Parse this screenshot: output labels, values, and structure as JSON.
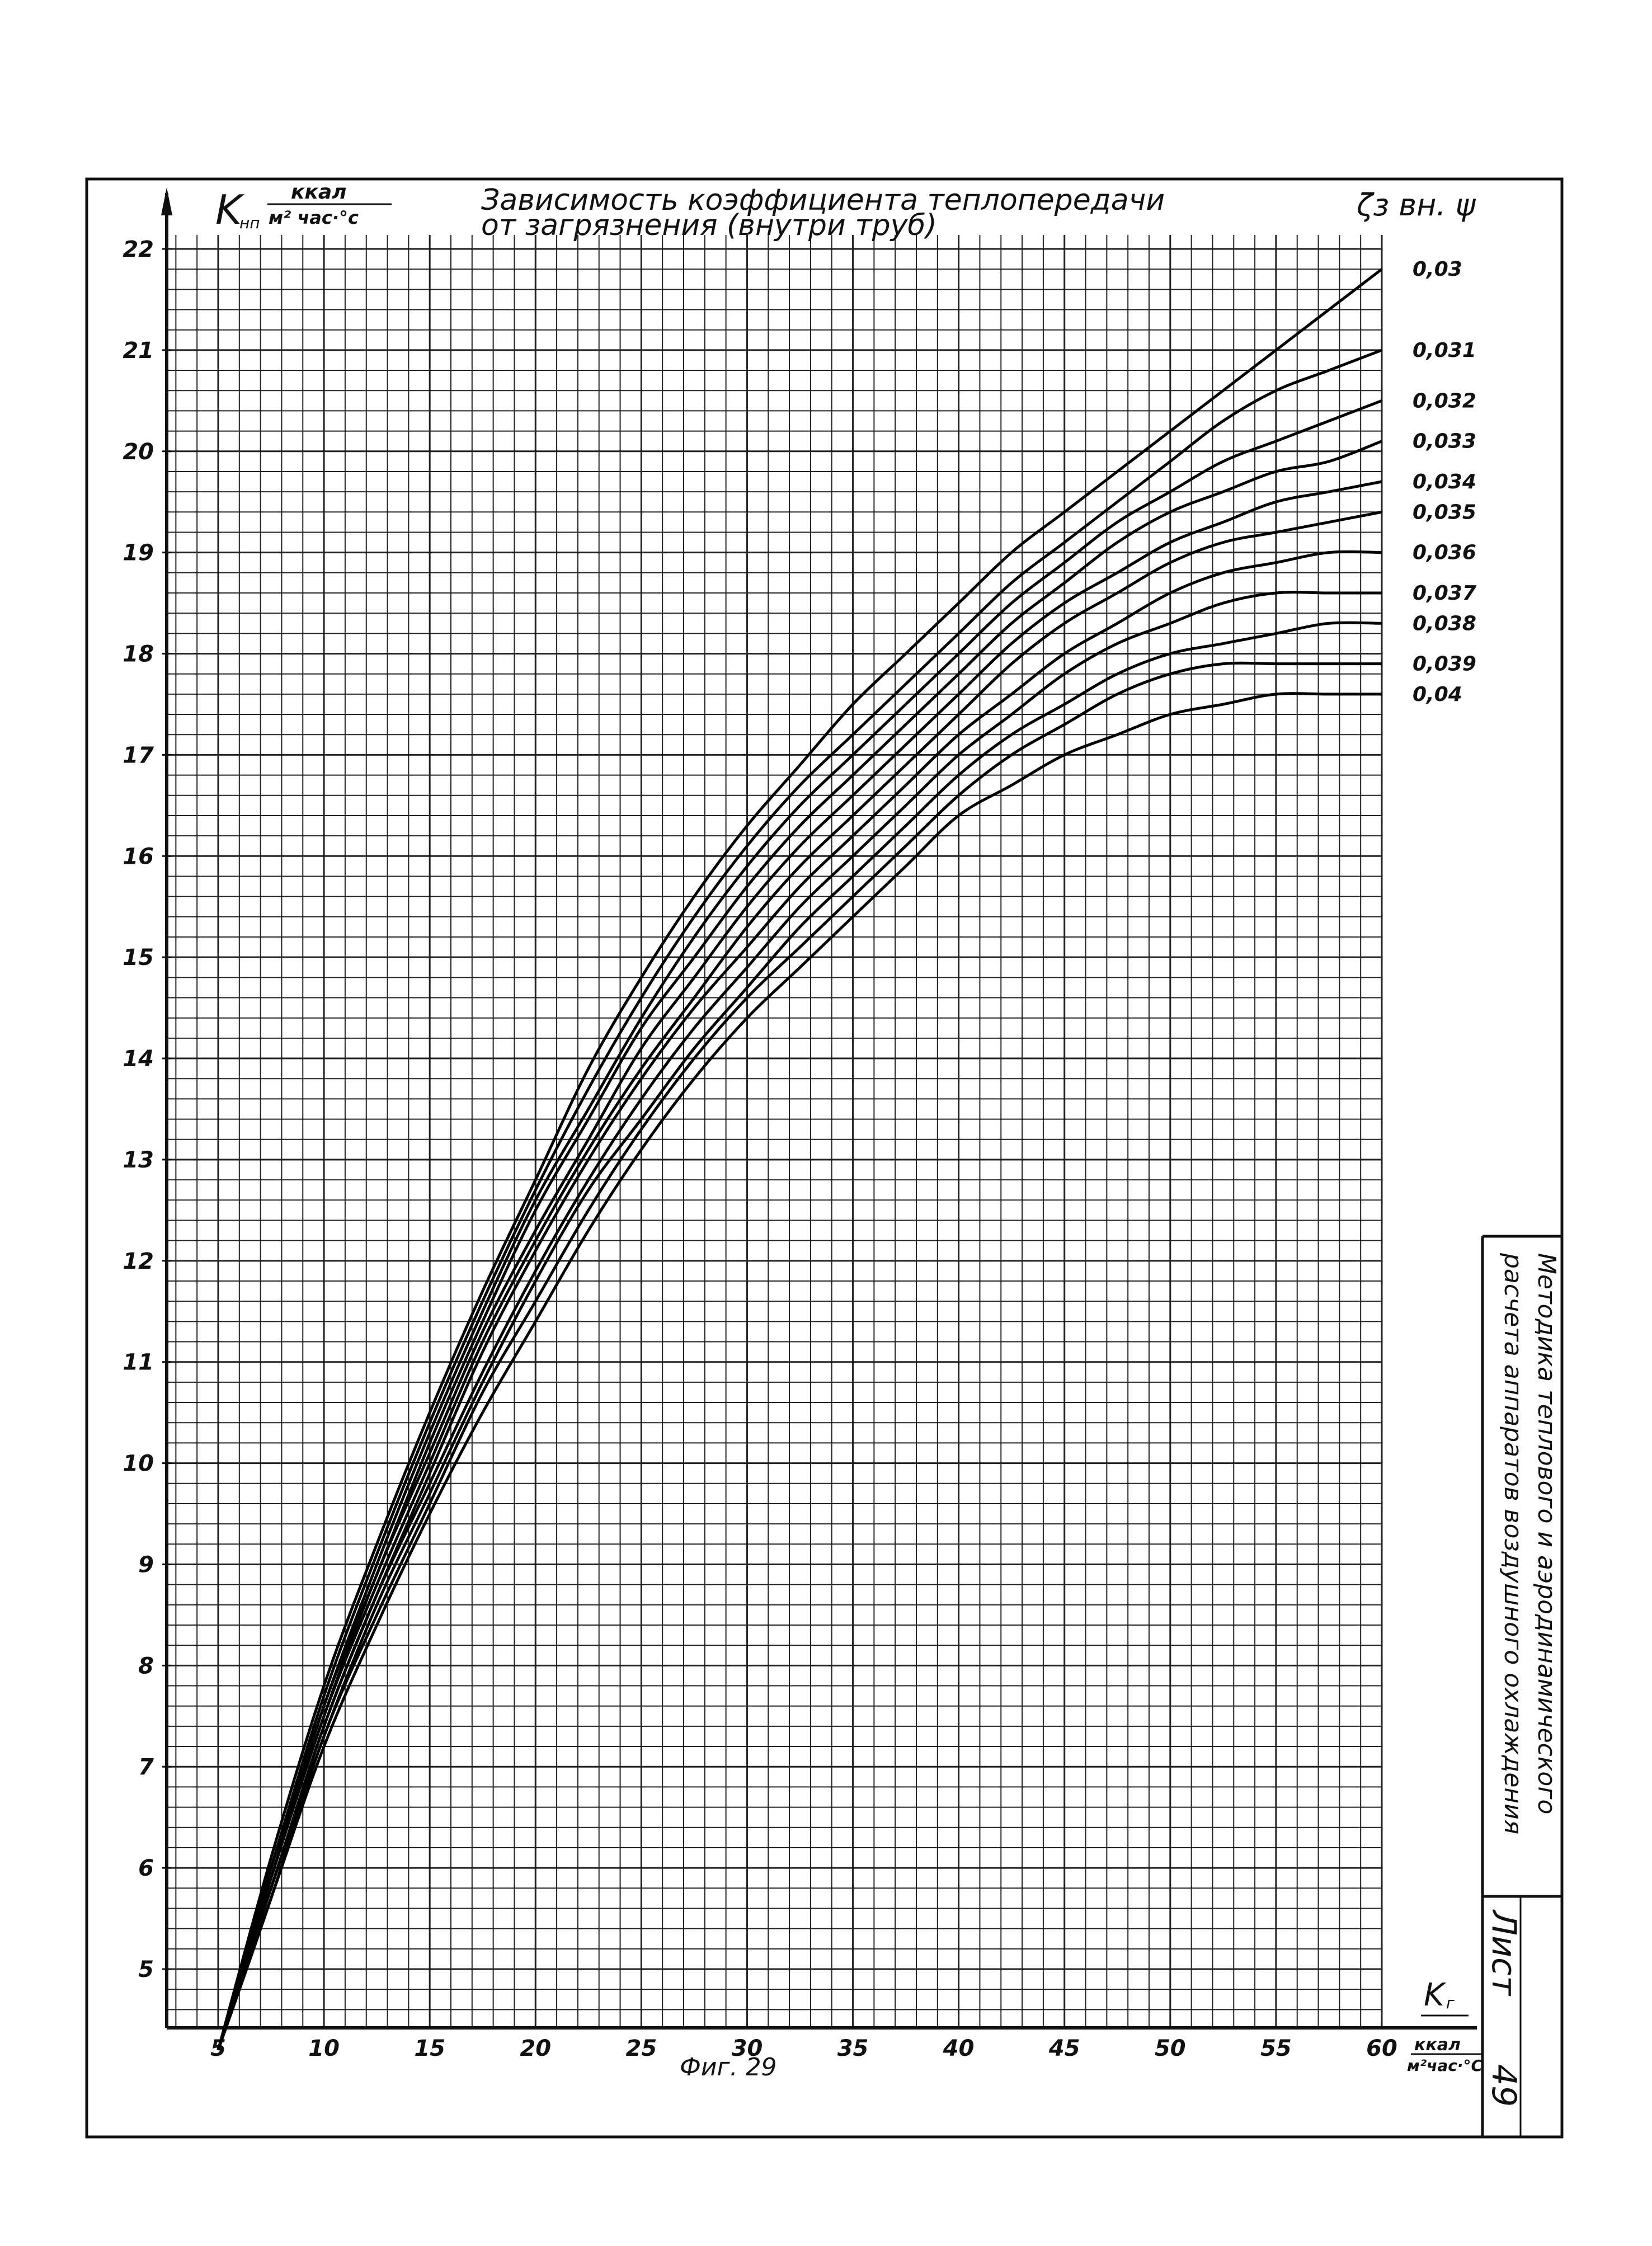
{
  "chart_data": {
    "type": "line",
    "title": "Зависимость коэффициента теплопередачи",
    "subtitle": "от загрязнения (внутри труб)",
    "ylabel": "K",
    "ylabel_sub": "нп",
    "ylabel_unit_num": "ккал",
    "ylabel_unit_den": "м² час·°с",
    "xlabel": "K",
    "xlabel_sub": "г",
    "xlabel_unit_num": "ккал",
    "xlabel_unit_den": "м²час·°С",
    "series_header": "ζз вн. ψ",
    "caption": "Фиг. 29",
    "xlim": [
      5,
      60
    ],
    "ylim": [
      4.2,
      22
    ],
    "x_ticks": [
      5,
      10,
      15,
      20,
      25,
      30,
      35,
      40,
      45,
      50,
      55,
      60
    ],
    "y_ticks": [
      5,
      6,
      7,
      8,
      9,
      10,
      11,
      12,
      13,
      14,
      15,
      16,
      17,
      18,
      19,
      20,
      21,
      22
    ],
    "grid": true,
    "legend": "right",
    "x": [
      5,
      7.5,
      10,
      12.5,
      15,
      17.5,
      20,
      22.5,
      25,
      27.5,
      30,
      32.5,
      35,
      37.5,
      40,
      42.5,
      45,
      47.5,
      50,
      52.5,
      55,
      57.5,
      60
    ],
    "series": [
      {
        "name": "0,03",
        "values": [
          4.2,
          6.1,
          7.8,
          9.2,
          10.5,
          11.7,
          12.8,
          13.9,
          14.8,
          15.6,
          16.3,
          16.9,
          17.5,
          18.0,
          18.5,
          19.0,
          19.4,
          19.8,
          20.2,
          20.6,
          21.0,
          21.4,
          21.8
        ]
      },
      {
        "name": "0,031",
        "values": [
          4.2,
          6.0,
          7.7,
          9.1,
          10.4,
          11.6,
          12.7,
          13.7,
          14.6,
          15.4,
          16.1,
          16.7,
          17.2,
          17.7,
          18.2,
          18.7,
          19.1,
          19.5,
          19.9,
          20.3,
          20.6,
          20.8,
          21.0
        ]
      },
      {
        "name": "0,032",
        "values": [
          4.2,
          6.0,
          7.6,
          9.0,
          10.3,
          11.5,
          12.6,
          13.5,
          14.4,
          15.2,
          15.9,
          16.5,
          17.0,
          17.5,
          18.0,
          18.5,
          18.9,
          19.3,
          19.6,
          19.9,
          20.1,
          20.3,
          20.5
        ]
      },
      {
        "name": "0,033",
        "values": [
          4.2,
          5.9,
          7.6,
          8.9,
          10.2,
          11.4,
          12.5,
          13.4,
          14.3,
          15.0,
          15.7,
          16.3,
          16.8,
          17.3,
          17.8,
          18.3,
          18.7,
          19.1,
          19.4,
          19.6,
          19.8,
          19.9,
          20.1
        ]
      },
      {
        "name": "0,034",
        "values": [
          4.2,
          5.9,
          7.5,
          8.9,
          10.1,
          11.3,
          12.3,
          13.2,
          14.1,
          14.8,
          15.5,
          16.1,
          16.6,
          17.1,
          17.6,
          18.1,
          18.5,
          18.8,
          19.1,
          19.3,
          19.5,
          19.6,
          19.7
        ]
      },
      {
        "name": "0,035",
        "values": [
          4.2,
          5.9,
          7.5,
          8.8,
          10.0,
          11.2,
          12.2,
          13.1,
          13.9,
          14.6,
          15.3,
          15.9,
          16.4,
          16.9,
          17.4,
          17.9,
          18.3,
          18.6,
          18.9,
          19.1,
          19.2,
          19.3,
          19.4
        ]
      },
      {
        "name": "0,036",
        "values": [
          4.2,
          5.8,
          7.4,
          8.7,
          9.9,
          11.1,
          12.1,
          13.0,
          13.8,
          14.5,
          15.1,
          15.7,
          16.2,
          16.7,
          17.2,
          17.6,
          18.0,
          18.3,
          18.6,
          18.8,
          18.9,
          19.0,
          19.0
        ]
      },
      {
        "name": "0,037",
        "values": [
          4.2,
          5.8,
          7.4,
          8.7,
          9.8,
          10.9,
          11.9,
          12.8,
          13.6,
          14.3,
          14.9,
          15.5,
          16.0,
          16.5,
          17.0,
          17.4,
          17.8,
          18.1,
          18.3,
          18.5,
          18.6,
          18.6,
          18.6
        ]
      },
      {
        "name": "0,038",
        "values": [
          4.2,
          5.8,
          7.3,
          8.6,
          9.7,
          10.8,
          11.8,
          12.7,
          13.4,
          14.1,
          14.7,
          15.3,
          15.8,
          16.3,
          16.8,
          17.2,
          17.5,
          17.8,
          18.0,
          18.1,
          18.2,
          18.3,
          18.3
        ]
      },
      {
        "name": "0,039",
        "values": [
          4.2,
          5.7,
          7.3,
          8.5,
          9.6,
          10.7,
          11.6,
          12.5,
          13.3,
          14.0,
          14.6,
          15.1,
          15.6,
          16.1,
          16.6,
          17.0,
          17.3,
          17.6,
          17.8,
          17.9,
          17.9,
          17.9,
          17.9
        ]
      },
      {
        "name": "0,04",
        "values": [
          4.2,
          5.7,
          7.2,
          8.4,
          9.5,
          10.5,
          11.4,
          12.3,
          13.1,
          13.8,
          14.4,
          14.9,
          15.4,
          15.9,
          16.4,
          16.7,
          17.0,
          17.2,
          17.4,
          17.5,
          17.6,
          17.6,
          17.6
        ]
      }
    ]
  },
  "title_block": {
    "line1": "Методика теплового и аэродинамического",
    "line2": "расчета аппаратов воздушного охлаждения",
    "sheet_label": "Лист",
    "sheet_number": "49"
  }
}
